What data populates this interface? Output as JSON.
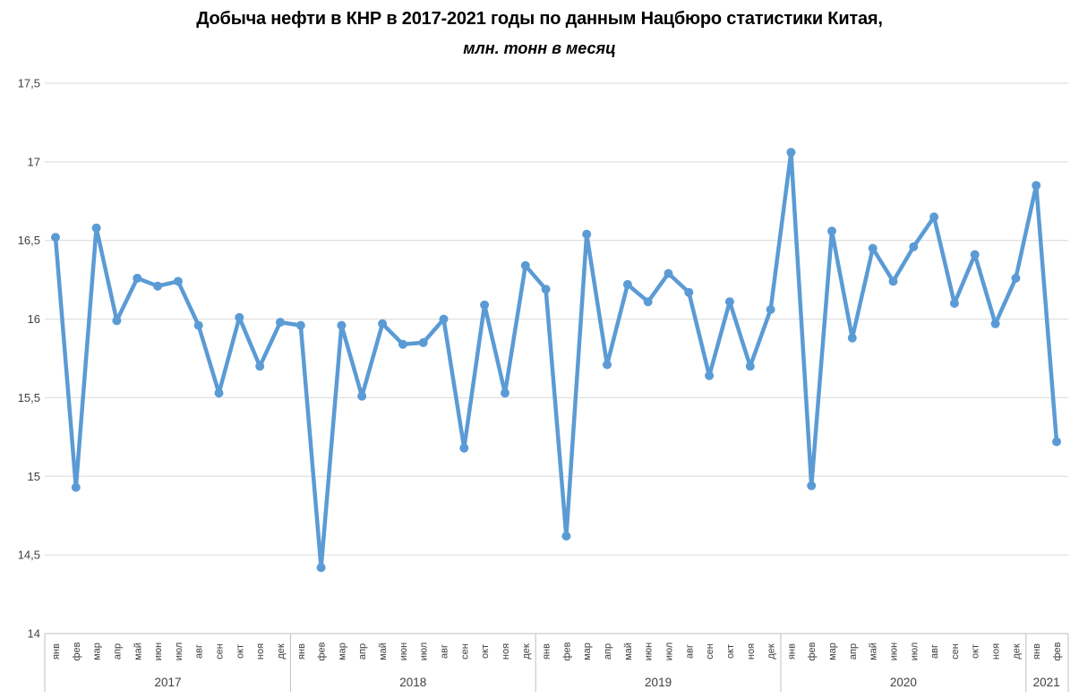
{
  "chart_data": {
    "type": "line",
    "title": "Добыча нефти в КНР в 2017-2021 годы по данным Нацбюро статистики Китая,",
    "subtitle": "млн. тонн в месяц",
    "grid": "horizontal",
    "legend": "none",
    "y_axis": {
      "min": 14,
      "max": 17.5,
      "step": 0.5,
      "tick_labels_top_to_bottom": [
        "17,5",
        "17",
        "16,5",
        "16",
        "15,5",
        "15",
        "14,5",
        "14"
      ]
    },
    "x_axis": {
      "month_labels": [
        "янв",
        "фев",
        "мар",
        "апр",
        "май",
        "июн",
        "июл",
        "авг",
        "сен",
        "окт",
        "ноя",
        "дек",
        "янв",
        "фев",
        "мар",
        "апр",
        "май",
        "июн",
        "июл",
        "авг",
        "сен",
        "окт",
        "ноя",
        "дек",
        "янв",
        "фев",
        "мар",
        "апр",
        "май",
        "июн",
        "июл",
        "авг",
        "сен",
        "окт",
        "ноя",
        "дек",
        "янв",
        "фев",
        "мар",
        "апр",
        "май",
        "июн",
        "июл",
        "авг",
        "сен",
        "окт",
        "ноя",
        "дек",
        "янв",
        "фев"
      ],
      "year_groups": [
        {
          "label": "2017",
          "months": 12
        },
        {
          "label": "2018",
          "months": 12
        },
        {
          "label": "2019",
          "months": 12
        },
        {
          "label": "2020",
          "months": 12
        },
        {
          "label": "2021",
          "months": 2
        }
      ]
    },
    "series": [
      {
        "values": [
          16.52,
          14.93,
          16.58,
          15.99,
          16.26,
          16.21,
          16.24,
          15.96,
          15.53,
          16.01,
          15.7,
          15.98,
          15.96,
          14.42,
          15.96,
          15.51,
          15.97,
          15.84,
          15.85,
          16.0,
          15.18,
          16.09,
          15.53,
          16.34,
          16.19,
          14.62,
          16.54,
          15.71,
          16.22,
          16.11,
          16.29,
          16.17,
          15.64,
          16.11,
          15.7,
          16.06,
          17.06,
          14.94,
          16.56,
          15.88,
          16.45,
          16.24,
          16.46,
          16.65,
          16.1,
          16.41,
          15.97,
          16.26,
          16.85,
          15.22
        ]
      }
    ]
  },
  "colors": {
    "line": "#5B9BD5",
    "marker": "#5B9BD5",
    "gridline": "#D9D9D9",
    "axis": "#BFBFBF",
    "tick_text": "#404040",
    "title_text": "#000000",
    "background": "#FFFFFF"
  }
}
